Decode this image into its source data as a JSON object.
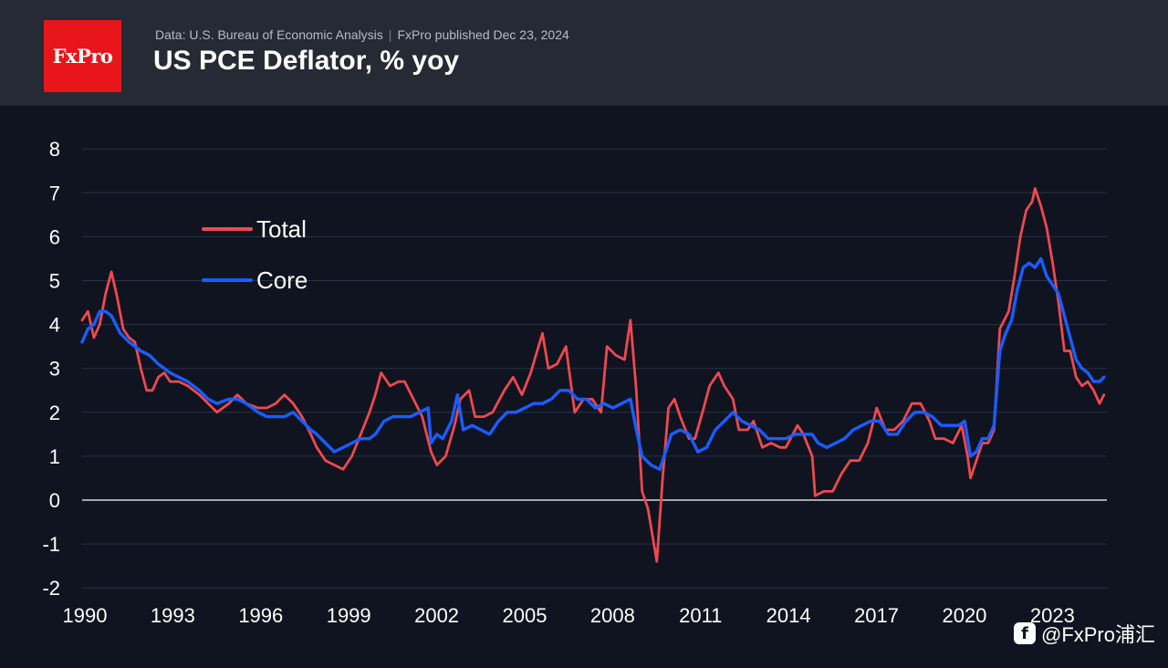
{
  "header": {
    "logo_text": "FxPro",
    "source_text": "Data: U.S. Bureau of Economic Analysis",
    "published_text": "FxPro published Dec 23, 2024",
    "title": "US PCE Deflator, % yoy"
  },
  "watermark": {
    "icon": "f",
    "text": "@FxPro浦汇"
  },
  "colors": {
    "total": "#f0484f",
    "core": "#1a5dff",
    "background": "#0f1420",
    "header_bg": "#262a34",
    "grid": "#2a3142",
    "zero_line": "#ffffff",
    "text": "#ffffff"
  },
  "chart_data": {
    "type": "line",
    "title": "US PCE Deflator, % yoy",
    "xlabel": "",
    "ylabel": "",
    "xlim": [
      1990,
      2024.95
    ],
    "ylim": [
      -2.2,
      8.3
    ],
    "x_ticks": [
      1990,
      1993,
      1996,
      1999,
      2002,
      2005,
      2008,
      2011,
      2014,
      2017,
      2020,
      2023
    ],
    "y_ticks": [
      -2,
      -1,
      0,
      1,
      2,
      3,
      4,
      5,
      6,
      7,
      8
    ],
    "legend_position": "upper-left",
    "series": [
      {
        "name": "Total",
        "points": [
          [
            1990.0,
            4.1
          ],
          [
            1990.2,
            4.3
          ],
          [
            1990.4,
            3.7
          ],
          [
            1990.6,
            4.0
          ],
          [
            1990.8,
            4.7
          ],
          [
            1991.0,
            5.2
          ],
          [
            1991.2,
            4.6
          ],
          [
            1991.4,
            3.9
          ],
          [
            1991.6,
            3.7
          ],
          [
            1991.8,
            3.6
          ],
          [
            1992.0,
            3.0
          ],
          [
            1992.2,
            2.5
          ],
          [
            1992.4,
            2.5
          ],
          [
            1992.6,
            2.8
          ],
          [
            1992.8,
            2.9
          ],
          [
            1993.0,
            2.7
          ],
          [
            1993.3,
            2.7
          ],
          [
            1993.6,
            2.6
          ],
          [
            1994.0,
            2.4
          ],
          [
            1994.3,
            2.2
          ],
          [
            1994.6,
            2.0
          ],
          [
            1995.0,
            2.2
          ],
          [
            1995.3,
            2.4
          ],
          [
            1995.6,
            2.2
          ],
          [
            1996.0,
            2.1
          ],
          [
            1996.3,
            2.1
          ],
          [
            1996.6,
            2.2
          ],
          [
            1996.9,
            2.4
          ],
          [
            1997.2,
            2.2
          ],
          [
            1997.5,
            1.9
          ],
          [
            1997.8,
            1.5
          ],
          [
            1998.0,
            1.2
          ],
          [
            1998.3,
            0.9
          ],
          [
            1998.6,
            0.8
          ],
          [
            1998.9,
            0.7
          ],
          [
            1999.2,
            1.0
          ],
          [
            1999.5,
            1.5
          ],
          [
            1999.8,
            2.0
          ],
          [
            2000.0,
            2.4
          ],
          [
            2000.2,
            2.9
          ],
          [
            2000.5,
            2.6
          ],
          [
            2000.8,
            2.7
          ],
          [
            2001.0,
            2.7
          ],
          [
            2001.3,
            2.3
          ],
          [
            2001.6,
            1.9
          ],
          [
            2001.9,
            1.1
          ],
          [
            2002.1,
            0.8
          ],
          [
            2002.4,
            1.0
          ],
          [
            2002.7,
            1.7
          ],
          [
            2002.9,
            2.3
          ],
          [
            2003.2,
            2.5
          ],
          [
            2003.4,
            1.9
          ],
          [
            2003.7,
            1.9
          ],
          [
            2004.0,
            2.0
          ],
          [
            2004.4,
            2.5
          ],
          [
            2004.7,
            2.8
          ],
          [
            2005.0,
            2.4
          ],
          [
            2005.3,
            2.9
          ],
          [
            2005.7,
            3.8
          ],
          [
            2005.9,
            3.0
          ],
          [
            2006.2,
            3.1
          ],
          [
            2006.5,
            3.5
          ],
          [
            2006.8,
            2.0
          ],
          [
            2007.1,
            2.3
          ],
          [
            2007.4,
            2.3
          ],
          [
            2007.7,
            2.0
          ],
          [
            2007.9,
            3.5
          ],
          [
            2008.2,
            3.3
          ],
          [
            2008.5,
            3.2
          ],
          [
            2008.7,
            4.1
          ],
          [
            2008.9,
            2.5
          ],
          [
            2009.1,
            0.2
          ],
          [
            2009.3,
            -0.2
          ],
          [
            2009.5,
            -1.0
          ],
          [
            2009.6,
            -1.4
          ],
          [
            2009.8,
            0.5
          ],
          [
            2010.0,
            2.1
          ],
          [
            2010.2,
            2.3
          ],
          [
            2010.4,
            1.9
          ],
          [
            2010.7,
            1.4
          ],
          [
            2010.9,
            1.4
          ],
          [
            2011.2,
            2.1
          ],
          [
            2011.4,
            2.6
          ],
          [
            2011.7,
            2.9
          ],
          [
            2011.9,
            2.6
          ],
          [
            2012.2,
            2.3
          ],
          [
            2012.4,
            1.6
          ],
          [
            2012.7,
            1.6
          ],
          [
            2012.9,
            1.8
          ],
          [
            2013.2,
            1.2
          ],
          [
            2013.5,
            1.3
          ],
          [
            2013.8,
            1.2
          ],
          [
            2014.0,
            1.2
          ],
          [
            2014.4,
            1.7
          ],
          [
            2014.6,
            1.5
          ],
          [
            2014.9,
            1.0
          ],
          [
            2015.0,
            0.1
          ],
          [
            2015.3,
            0.2
          ],
          [
            2015.6,
            0.2
          ],
          [
            2015.9,
            0.6
          ],
          [
            2016.2,
            0.9
          ],
          [
            2016.5,
            0.9
          ],
          [
            2016.8,
            1.3
          ],
          [
            2017.1,
            2.1
          ],
          [
            2017.4,
            1.6
          ],
          [
            2017.7,
            1.6
          ],
          [
            2018.0,
            1.8
          ],
          [
            2018.3,
            2.2
          ],
          [
            2018.6,
            2.2
          ],
          [
            2018.9,
            1.8
          ],
          [
            2019.1,
            1.4
          ],
          [
            2019.4,
            1.4
          ],
          [
            2019.7,
            1.3
          ],
          [
            2020.0,
            1.7
          ],
          [
            2020.2,
            1.0
          ],
          [
            2020.3,
            0.5
          ],
          [
            2020.5,
            0.9
          ],
          [
            2020.7,
            1.3
          ],
          [
            2020.9,
            1.3
          ],
          [
            2021.1,
            1.6
          ],
          [
            2021.3,
            3.9
          ],
          [
            2021.6,
            4.3
          ],
          [
            2021.8,
            5.1
          ],
          [
            2022.0,
            6.0
          ],
          [
            2022.2,
            6.6
          ],
          [
            2022.4,
            6.8
          ],
          [
            2022.5,
            7.1
          ],
          [
            2022.7,
            6.7
          ],
          [
            2022.9,
            6.2
          ],
          [
            2023.1,
            5.4
          ],
          [
            2023.3,
            4.5
          ],
          [
            2023.5,
            3.4
          ],
          [
            2023.7,
            3.4
          ],
          [
            2023.9,
            2.8
          ],
          [
            2024.1,
            2.6
          ],
          [
            2024.3,
            2.7
          ],
          [
            2024.5,
            2.5
          ],
          [
            2024.7,
            2.2
          ],
          [
            2024.85,
            2.4
          ]
        ]
      },
      {
        "name": "Core",
        "points": [
          [
            1990.0,
            3.6
          ],
          [
            1990.2,
            3.9
          ],
          [
            1990.4,
            4.0
          ],
          [
            1990.6,
            4.3
          ],
          [
            1990.8,
            4.3
          ],
          [
            1991.0,
            4.2
          ],
          [
            1991.3,
            3.8
          ],
          [
            1991.6,
            3.6
          ],
          [
            1992.0,
            3.4
          ],
          [
            1992.3,
            3.3
          ],
          [
            1992.6,
            3.1
          ],
          [
            1993.0,
            2.9
          ],
          [
            1993.3,
            2.8
          ],
          [
            1993.6,
            2.7
          ],
          [
            1994.0,
            2.5
          ],
          [
            1994.3,
            2.3
          ],
          [
            1994.6,
            2.2
          ],
          [
            1995.0,
            2.3
          ],
          [
            1995.3,
            2.3
          ],
          [
            1995.6,
            2.2
          ],
          [
            1996.0,
            2.0
          ],
          [
            1996.3,
            1.9
          ],
          [
            1996.6,
            1.9
          ],
          [
            1996.9,
            1.9
          ],
          [
            1997.2,
            2.0
          ],
          [
            1997.5,
            1.8
          ],
          [
            1997.8,
            1.6
          ],
          [
            1998.0,
            1.5
          ],
          [
            1998.3,
            1.3
          ],
          [
            1998.6,
            1.1
          ],
          [
            1998.9,
            1.2
          ],
          [
            1999.2,
            1.3
          ],
          [
            1999.5,
            1.4
          ],
          [
            1999.8,
            1.4
          ],
          [
            2000.0,
            1.5
          ],
          [
            2000.3,
            1.8
          ],
          [
            2000.6,
            1.9
          ],
          [
            2000.9,
            1.9
          ],
          [
            2001.2,
            1.9
          ],
          [
            2001.5,
            2.0
          ],
          [
            2001.8,
            2.1
          ],
          [
            2001.9,
            1.3
          ],
          [
            2002.1,
            1.5
          ],
          [
            2002.3,
            1.4
          ],
          [
            2002.6,
            1.8
          ],
          [
            2002.8,
            2.4
          ],
          [
            2003.0,
            1.6
          ],
          [
            2003.3,
            1.7
          ],
          [
            2003.6,
            1.6
          ],
          [
            2003.9,
            1.5
          ],
          [
            2004.2,
            1.8
          ],
          [
            2004.5,
            2.0
          ],
          [
            2004.8,
            2.0
          ],
          [
            2005.1,
            2.1
          ],
          [
            2005.4,
            2.2
          ],
          [
            2005.7,
            2.2
          ],
          [
            2006.0,
            2.3
          ],
          [
            2006.3,
            2.5
          ],
          [
            2006.6,
            2.5
          ],
          [
            2006.9,
            2.3
          ],
          [
            2007.2,
            2.3
          ],
          [
            2007.5,
            2.1
          ],
          [
            2007.8,
            2.2
          ],
          [
            2008.1,
            2.1
          ],
          [
            2008.4,
            2.2
          ],
          [
            2008.7,
            2.3
          ],
          [
            2008.9,
            1.6
          ],
          [
            2009.1,
            1.0
          ],
          [
            2009.4,
            0.8
          ],
          [
            2009.7,
            0.7
          ],
          [
            2009.9,
            1.1
          ],
          [
            2010.1,
            1.5
          ],
          [
            2010.4,
            1.6
          ],
          [
            2010.7,
            1.5
          ],
          [
            2011.0,
            1.1
          ],
          [
            2011.3,
            1.2
          ],
          [
            2011.6,
            1.6
          ],
          [
            2011.9,
            1.8
          ],
          [
            2012.2,
            2.0
          ],
          [
            2012.5,
            1.8
          ],
          [
            2012.8,
            1.7
          ],
          [
            2013.1,
            1.6
          ],
          [
            2013.4,
            1.4
          ],
          [
            2013.7,
            1.4
          ],
          [
            2014.0,
            1.4
          ],
          [
            2014.3,
            1.5
          ],
          [
            2014.6,
            1.5
          ],
          [
            2014.9,
            1.5
          ],
          [
            2015.1,
            1.3
          ],
          [
            2015.4,
            1.2
          ],
          [
            2015.7,
            1.3
          ],
          [
            2016.0,
            1.4
          ],
          [
            2016.3,
            1.6
          ],
          [
            2016.6,
            1.7
          ],
          [
            2016.9,
            1.8
          ],
          [
            2017.2,
            1.8
          ],
          [
            2017.5,
            1.5
          ],
          [
            2017.8,
            1.5
          ],
          [
            2018.1,
            1.8
          ],
          [
            2018.4,
            2.0
          ],
          [
            2018.7,
            2.0
          ],
          [
            2019.0,
            1.9
          ],
          [
            2019.3,
            1.7
          ],
          [
            2019.6,
            1.7
          ],
          [
            2019.9,
            1.7
          ],
          [
            2020.1,
            1.8
          ],
          [
            2020.3,
            1.0
          ],
          [
            2020.5,
            1.1
          ],
          [
            2020.7,
            1.4
          ],
          [
            2020.9,
            1.4
          ],
          [
            2021.1,
            1.7
          ],
          [
            2021.3,
            3.4
          ],
          [
            2021.5,
            3.8
          ],
          [
            2021.7,
            4.1
          ],
          [
            2021.9,
            4.8
          ],
          [
            2022.1,
            5.3
          ],
          [
            2022.3,
            5.4
          ],
          [
            2022.5,
            5.3
          ],
          [
            2022.7,
            5.5
          ],
          [
            2022.9,
            5.1
          ],
          [
            2023.1,
            4.9
          ],
          [
            2023.3,
            4.7
          ],
          [
            2023.5,
            4.2
          ],
          [
            2023.7,
            3.7
          ],
          [
            2023.9,
            3.2
          ],
          [
            2024.1,
            3.0
          ],
          [
            2024.3,
            2.9
          ],
          [
            2024.5,
            2.7
          ],
          [
            2024.7,
            2.7
          ],
          [
            2024.85,
            2.8
          ]
        ]
      }
    ]
  }
}
